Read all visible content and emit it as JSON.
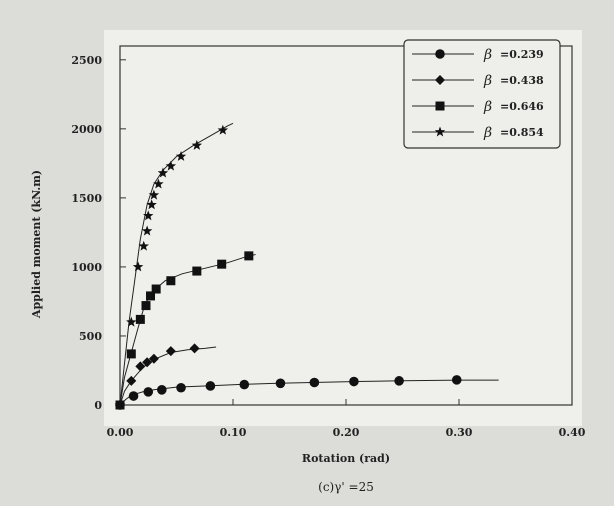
{
  "chart_data": {
    "type": "line",
    "title": "",
    "caption": "(c)γ' =25",
    "xlabel": "Rotation (rad)",
    "ylabel": "Applied moment (kN.m)",
    "xlim": [
      0,
      0.4
    ],
    "ylim": [
      0,
      2600
    ],
    "xticks": [
      "0.00",
      "0.10",
      "0.20",
      "0.30",
      "0.40"
    ],
    "yticks": [
      "0",
      "500",
      "1000",
      "1500",
      "2000",
      "2500"
    ],
    "grid": false,
    "legend_position": "top-right",
    "legend_symbol": "β",
    "series": [
      {
        "name": "=0.239",
        "marker": "circle",
        "line_x": [
          0,
          0.005,
          0.01,
          0.02,
          0.03,
          0.05,
          0.08,
          0.11,
          0.14,
          0.17,
          0.21,
          0.25,
          0.3,
          0.335
        ],
        "line_y": [
          0,
          40,
          70,
          95,
          110,
          130,
          140,
          150,
          158,
          163,
          170,
          175,
          180,
          180
        ],
        "x": [
          0,
          0.012,
          0.025,
          0.037,
          0.054,
          0.08,
          0.11,
          0.142,
          0.172,
          0.207,
          0.247,
          0.298
        ],
        "y": [
          0,
          65,
          95,
          110,
          125,
          138,
          148,
          157,
          163,
          170,
          175,
          182
        ]
      },
      {
        "name": "=0.438",
        "marker": "diamond",
        "line_x": [
          0,
          0.004,
          0.01,
          0.02,
          0.03,
          0.045,
          0.06,
          0.075,
          0.085
        ],
        "line_y": [
          0,
          100,
          175,
          270,
          330,
          380,
          400,
          410,
          420
        ],
        "x": [
          0,
          0.01,
          0.018,
          0.024,
          0.03,
          0.045,
          0.066
        ],
        "y": [
          0,
          175,
          280,
          310,
          335,
          390,
          410
        ]
      },
      {
        "name": "=0.646",
        "marker": "square",
        "line_x": [
          0,
          0.004,
          0.01,
          0.016,
          0.022,
          0.03,
          0.04,
          0.055,
          0.075,
          0.095,
          0.11,
          0.12
        ],
        "line_y": [
          0,
          200,
          380,
          560,
          730,
          830,
          900,
          950,
          990,
          1030,
          1070,
          1090
        ],
        "x": [
          0,
          0.01,
          0.018,
          0.023,
          0.027,
          0.032,
          0.045,
          0.068,
          0.09,
          0.114
        ],
        "y": [
          0,
          370,
          620,
          720,
          790,
          840,
          900,
          970,
          1020,
          1080
        ]
      },
      {
        "name": "=0.854",
        "marker": "star",
        "line_x": [
          0,
          0.004,
          0.008,
          0.013,
          0.018,
          0.024,
          0.03,
          0.038,
          0.05,
          0.065,
          0.08,
          0.095,
          0.1
        ],
        "line_y": [
          0,
          300,
          600,
          900,
          1200,
          1450,
          1600,
          1700,
          1800,
          1880,
          1950,
          2020,
          2040
        ],
        "x": [
          0,
          0.01,
          0.016,
          0.021,
          0.024,
          0.025,
          0.028,
          0.03,
          0.034,
          0.038,
          0.045,
          0.054,
          0.068,
          0.091
        ],
        "y": [
          0,
          600,
          1000,
          1150,
          1260,
          1370,
          1450,
          1520,
          1600,
          1680,
          1730,
          1800,
          1880,
          1990
        ]
      }
    ]
  }
}
